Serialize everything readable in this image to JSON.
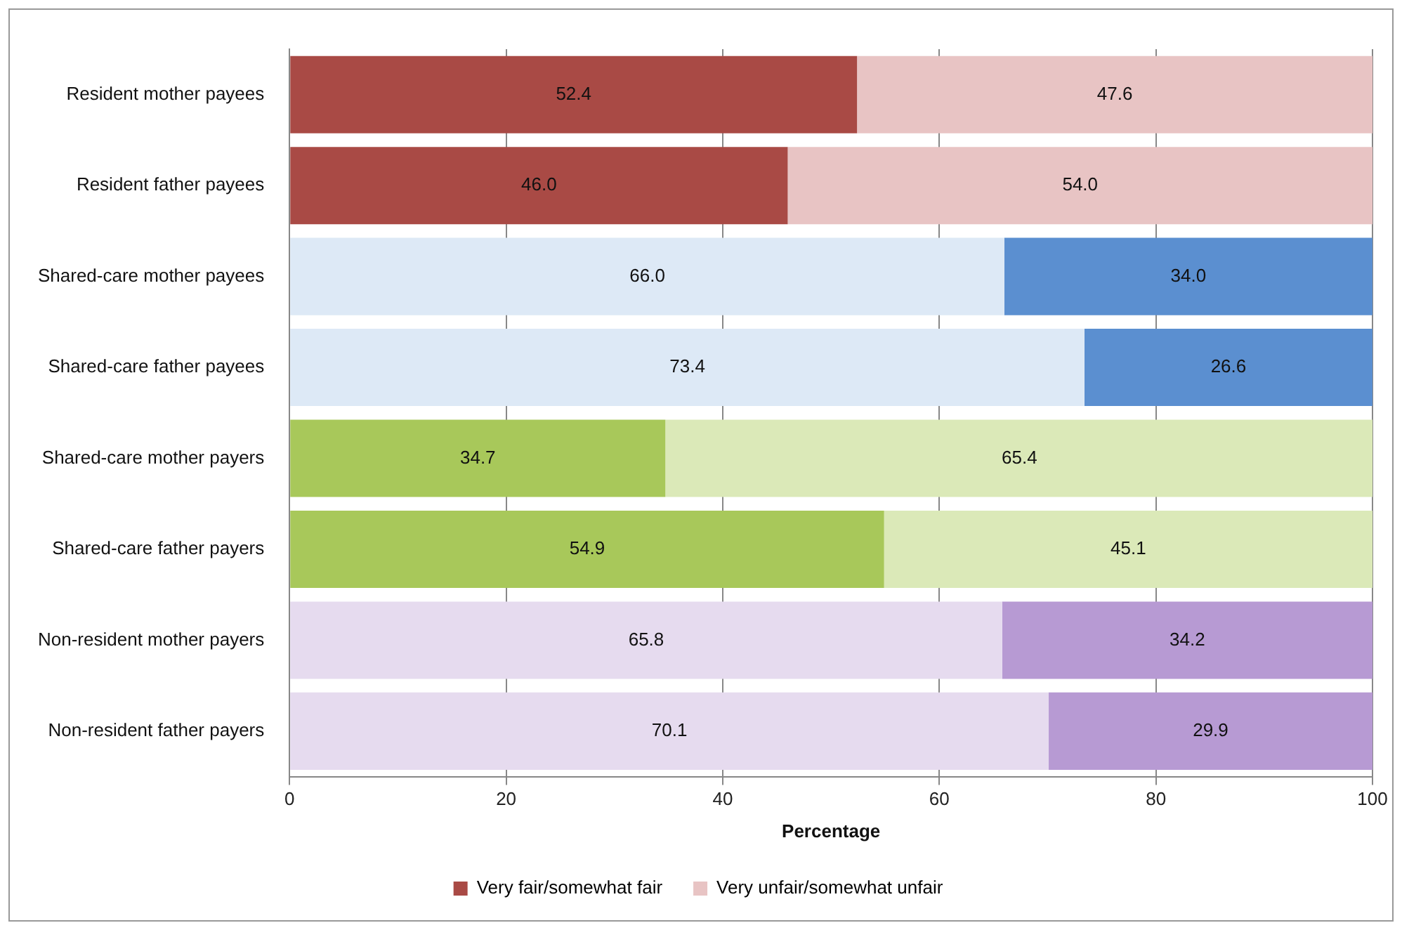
{
  "chart_data": {
    "type": "bar",
    "orientation": "horizontal",
    "stacked": true,
    "xlabel": "Percentage",
    "categories": [
      "Resident mother payees",
      "Resident father payees",
      "Shared-care mother payees",
      "Shared-care father payees",
      "Shared-care mother payers",
      "Shared-care father payers",
      "Non-resident mother payers",
      "Non-resident father payers"
    ],
    "series": [
      {
        "name": "Very fair/somewhat fair",
        "color": "#a94a45",
        "colors": [
          "#a94a45",
          "#a94a45",
          "#dde9f6",
          "#dde9f6",
          "#a8c85a",
          "#a8c85a",
          "#e6dbef",
          "#e6dbef"
        ],
        "values": [
          52.4,
          46.0,
          66.0,
          73.4,
          34.7,
          54.9,
          65.8,
          70.1
        ],
        "value_labels": [
          "52.4",
          "46.0",
          "66.0",
          "73.4",
          "34.7",
          "54.9",
          "65.8",
          "70.1"
        ]
      },
      {
        "name": "Very unfair/somewhat unfair",
        "color": "#e8c4c4",
        "colors": [
          "#e8c4c4",
          "#e8c4c4",
          "#5b8fd0",
          "#5b8fd0",
          "#dbe9b8",
          "#dbe9b8",
          "#b79ad3",
          "#b79ad3"
        ],
        "values": [
          47.6,
          54.0,
          34.0,
          26.6,
          65.4,
          45.1,
          34.2,
          29.9
        ],
        "value_labels": [
          "47.6",
          "54.0",
          "34.0",
          "26.6",
          "65.4",
          "45.1",
          "34.2",
          "29.9"
        ]
      }
    ],
    "xlim": [
      0,
      100
    ],
    "xticks": [
      0,
      20,
      40,
      60,
      80,
      100
    ],
    "grid": "x",
    "legend": "bottom"
  }
}
